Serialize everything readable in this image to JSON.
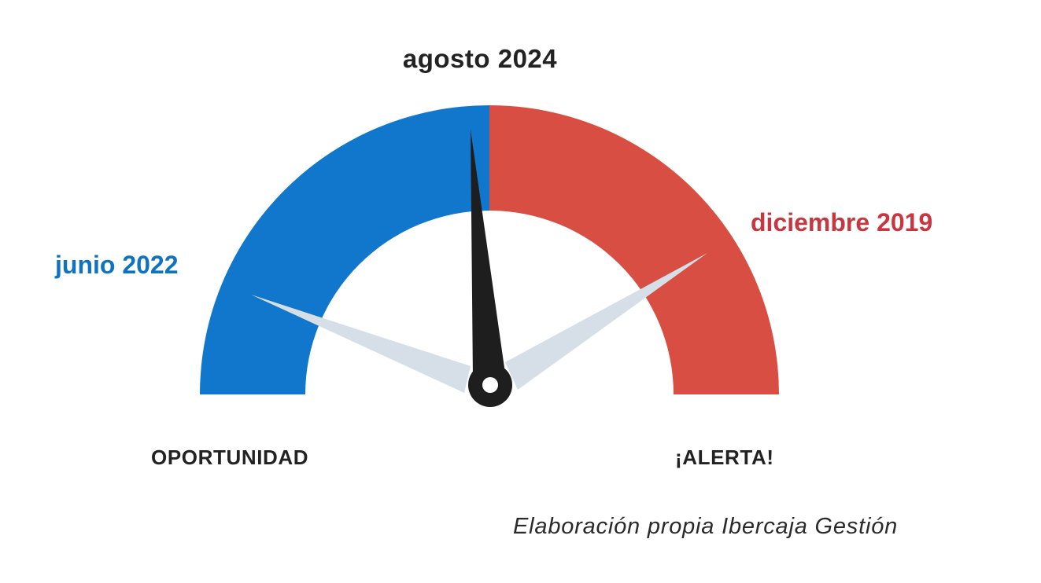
{
  "gauge": {
    "top_label": "agosto 2024",
    "left_label": "junio 2022",
    "right_label": "diciembre 2019",
    "left_zone_label": "OPORTUNIDAD",
    "right_zone_label": "¡ALERTA!",
    "colors": {
      "opportunity": "#1077CC",
      "alert": "#D94E43",
      "left_label": "#1073C2",
      "right_label": "#C8373F",
      "main_needle": "#1E1E1E",
      "ghost_needle": "#D6DFE7"
    }
  },
  "source": "Elaboración propia Ibercaja Gestión"
}
